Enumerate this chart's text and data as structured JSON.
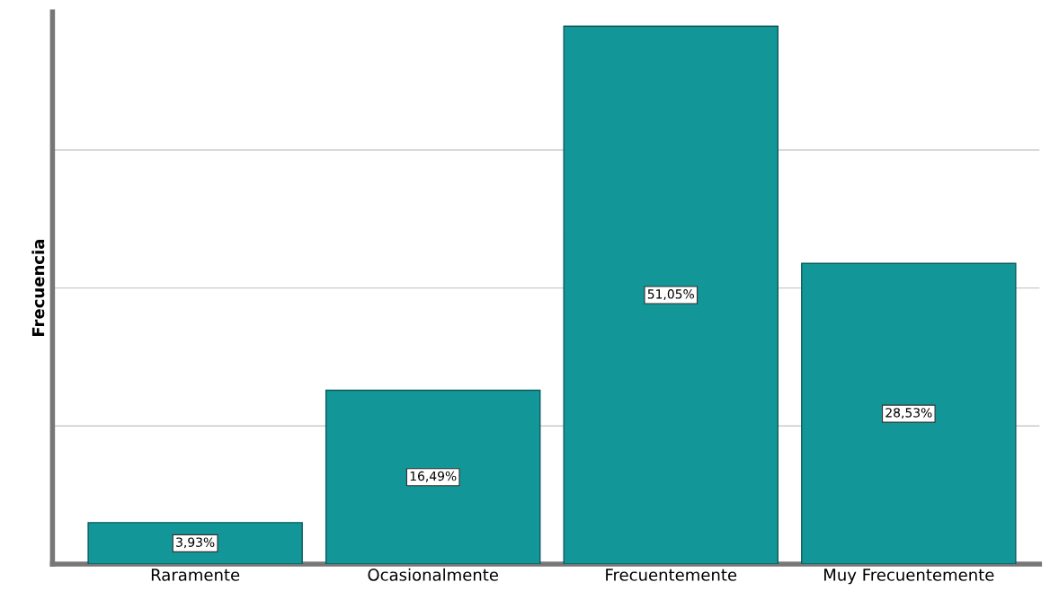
{
  "chart_data": {
    "type": "bar",
    "ylabel": "Frecuencia",
    "categories": [
      "Raramente",
      "Ocasionalmente",
      "Frecuentemente",
      "Muy Frecuentemente"
    ],
    "values": [
      3.93,
      16.49,
      51.05,
      28.53
    ],
    "value_labels": [
      "3,93%",
      "16,49%",
      "51,05%",
      "28,53%"
    ],
    "color": "#139698",
    "ylim": [
      0,
      52.4
    ],
    "yticks": [
      {
        "value": 0,
        "label": null
      },
      {
        "value": 13.1,
        "label": null
      },
      {
        "value": 26.2,
        "label": null
      },
      {
        "value": 39.3,
        "label": null
      }
    ],
    "tick_labels": "x",
    "grid": "y"
  }
}
